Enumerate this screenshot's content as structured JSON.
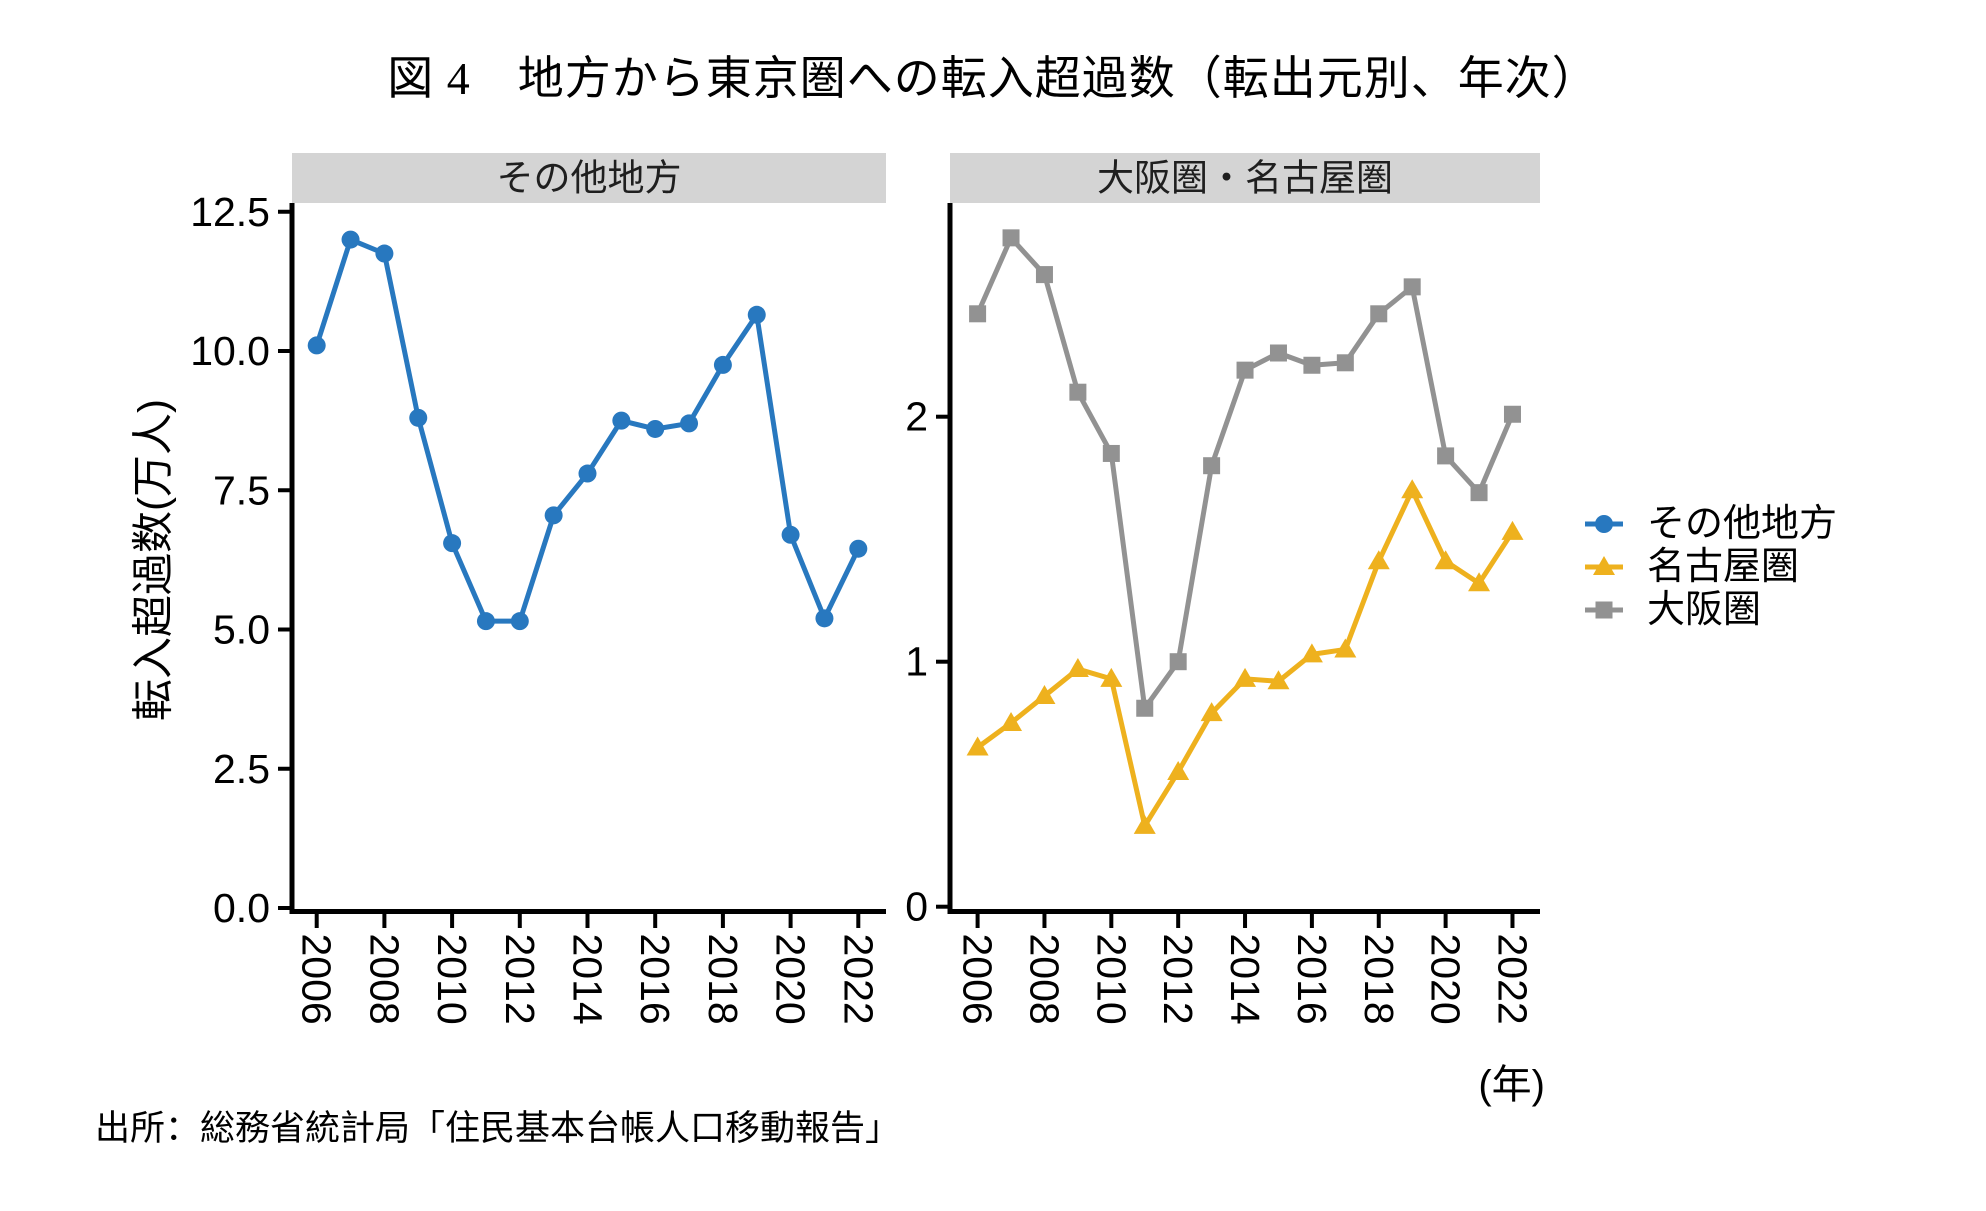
{
  "title": "図 4　地方から東京圏への転入超過数（転出元別、年次）",
  "source": "出所：総務省統計局「住民基本台帳人口移動報告」",
  "colors": {
    "other_regions_blue": "#2878bf",
    "nagoya_yellow": "#eeb11e",
    "osaka_gray": "#929292",
    "strip_background": "#d4d4d4",
    "strip_text": "#1f1f1f",
    "axis_black": "#000000"
  },
  "chart_data": {
    "type": "line",
    "x_years": [
      2006,
      2007,
      2008,
      2009,
      2010,
      2011,
      2012,
      2013,
      2014,
      2015,
      2016,
      2017,
      2018,
      2019,
      2020,
      2021,
      2022
    ],
    "x_tick_labels": [
      "2006",
      "2008",
      "2010",
      "2012",
      "2014",
      "2016",
      "2018",
      "2020",
      "2022"
    ],
    "x_unit": "(年)",
    "ylabel": "転入超過数(万人)",
    "panels": [
      {
        "title": "その他地方",
        "ylim": [
          0,
          12.7
        ],
        "yticks": [
          {
            "v": 0.0,
            "label": "0.0"
          },
          {
            "v": 2.5,
            "label": "2.5"
          },
          {
            "v": 5.0,
            "label": "5.0"
          },
          {
            "v": 7.5,
            "label": "7.5"
          },
          {
            "v": 10.0,
            "label": "10.0"
          },
          {
            "v": 12.5,
            "label": "12.5"
          }
        ],
        "series": [
          {
            "name": "その他地方",
            "marker": "circle",
            "color_key": "other_regions_blue",
            "values": [
              10.1,
              12.0,
              11.75,
              8.8,
              6.55,
              5.15,
              5.15,
              7.05,
              7.8,
              8.75,
              8.6,
              8.7,
              9.75,
              10.65,
              6.7,
              5.2,
              6.45
            ]
          }
        ]
      },
      {
        "title": "大阪圏・名古屋圏",
        "ylim": [
          0,
          2.87
        ],
        "yticks": [
          {
            "v": 0,
            "label": "0"
          },
          {
            "v": 1,
            "label": "1"
          },
          {
            "v": 2,
            "label": "2"
          }
        ],
        "series": [
          {
            "name": "大阪圏",
            "marker": "square",
            "color_key": "osaka_gray",
            "values": [
              2.42,
              2.73,
              2.58,
              2.1,
              1.85,
              0.81,
              1.0,
              1.8,
              2.19,
              2.26,
              2.21,
              2.22,
              2.42,
              2.53,
              1.84,
              1.69,
              2.01
            ]
          },
          {
            "name": "名古屋圏",
            "marker": "triangle",
            "color_key": "nagoya_yellow",
            "values": [
              0.65,
              0.75,
              0.86,
              0.97,
              0.93,
              0.33,
              0.55,
              0.79,
              0.93,
              0.92,
              1.03,
              1.05,
              1.41,
              1.7,
              1.41,
              1.32,
              1.53
            ]
          }
        ]
      }
    ],
    "legend_position": "right"
  },
  "legend": {
    "items": [
      {
        "label": "その他地方",
        "marker": "circle",
        "color_key": "other_regions_blue"
      },
      {
        "label": "名古屋圏",
        "marker": "triangle",
        "color_key": "nagoya_yellow"
      },
      {
        "label": "大阪圏",
        "marker": "square",
        "color_key": "osaka_gray"
      }
    ]
  }
}
